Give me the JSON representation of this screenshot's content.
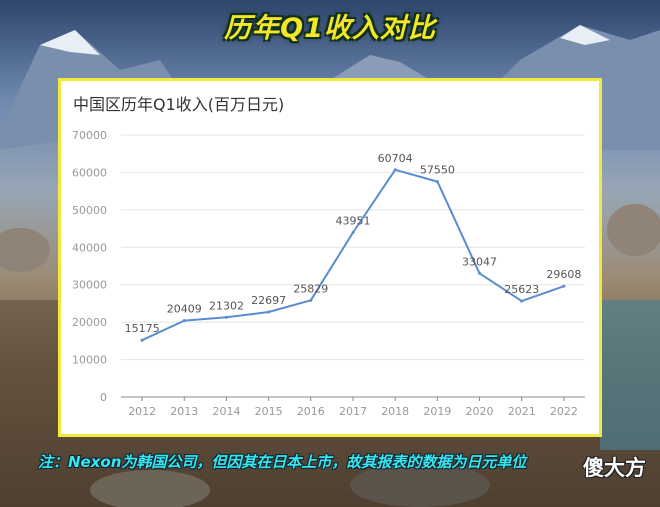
{
  "banner": {
    "title": "历年Q1收入对比"
  },
  "note": "注：Nexon为韩国公司，但因其在日本上市，故其报表的数据为日元单位",
  "watermark": "傻大方",
  "colors": {
    "line": "#5b8bd0",
    "frame": "#f2ea3a",
    "title": "#f4e628",
    "note": "#38e6f0"
  },
  "chart_data": {
    "type": "line",
    "title": "中国区历年Q1收入(百万日元)",
    "x": [
      "2012",
      "2013",
      "2014",
      "2015",
      "2016",
      "2017",
      "2018",
      "2019",
      "2020",
      "2021",
      "2022"
    ],
    "values": [
      15175,
      20409,
      21302,
      22697,
      25829,
      43951,
      60704,
      57550,
      33047,
      25623,
      29608
    ],
    "labels": [
      "15175",
      "20409",
      "21302",
      "22697",
      "25829",
      "43951",
      "60704",
      "57550",
      "33047",
      "25623",
      "29608"
    ],
    "ylim": [
      0,
      70000
    ],
    "yticks": [
      "0",
      "10000",
      "20000",
      "30000",
      "40000",
      "50000",
      "60000",
      "70000"
    ],
    "grid": true,
    "legend": "none"
  }
}
